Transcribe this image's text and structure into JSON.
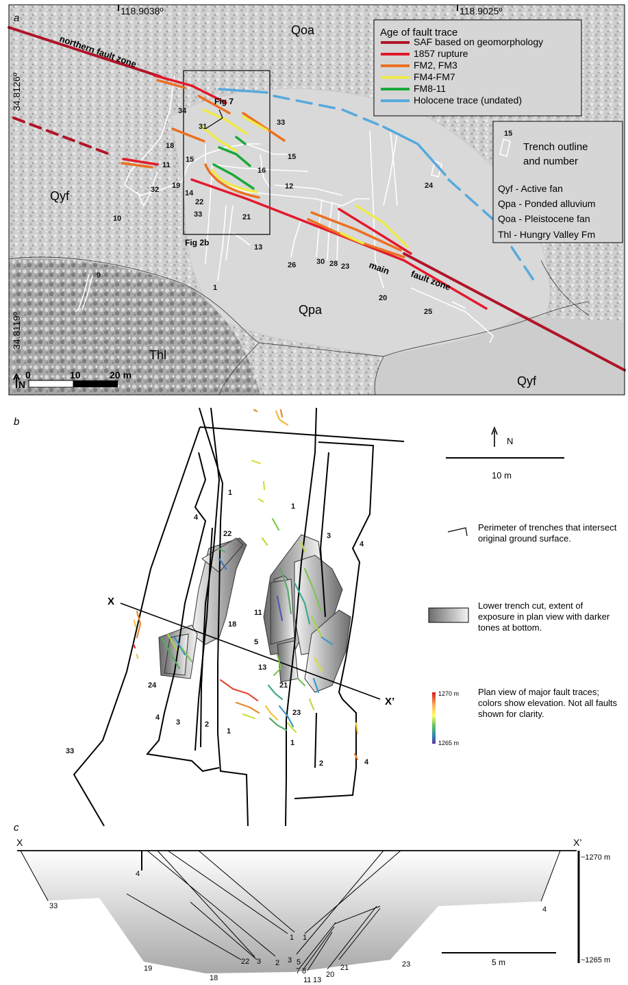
{
  "panel_a": {
    "panel_letter": "a",
    "coords": {
      "top_left": "118.9038º",
      "top_right": "118.9025º",
      "left_top": "34.8126º",
      "left_bottom": "34.8119º"
    },
    "units": {
      "qoa": "Qoa",
      "qyf_left": "Qyf",
      "qpa": "Qpa",
      "thl": "Thl",
      "qyf_right": "Qyf"
    },
    "zone_labels": {
      "northern": "northern fault zone",
      "main": "main",
      "fault_zone": "fault zone"
    },
    "figure_refs": {
      "fig7": "Fig 7",
      "fig2b": "Fig 2b"
    },
    "legend": {
      "title": "Age of fault trace",
      "items": [
        {
          "label": "SAF based on geomorphology",
          "color": "#b01428"
        },
        {
          "label": "1857 rupture",
          "color": "#e2192c"
        },
        {
          "label": "FM2, FM3",
          "color": "#ec7020"
        },
        {
          "label": "FM4-FM7",
          "color": "#eeea4a"
        },
        {
          "label": "FM8-11",
          "color": "#1aa838"
        },
        {
          "label": "Holocene trace (undated)",
          "color": "#56a9dc"
        }
      ]
    },
    "key_box": {
      "trench_number": "15",
      "trench_line1": "Trench outline",
      "trench_line2": "and number",
      "units": [
        "Qyf - Active fan",
        "Qpa - Ponded alluvium",
        "Qoa - Pleistocene fan",
        "Thl - Hungry Valley Fm"
      ]
    },
    "trench_numbers": [
      "34",
      "31",
      "33",
      "18",
      "15",
      "15",
      "16",
      "11",
      "32",
      "19",
      "12",
      "14",
      "22",
      "33",
      "21",
      "10",
      "13",
      "24",
      "26",
      "30",
      "28",
      "23",
      "9",
      "1",
      "20",
      "25"
    ],
    "scale": {
      "north": "N",
      "zero": "0",
      "ten": "10",
      "twenty": "20 m"
    }
  },
  "panel_b": {
    "panel_letter": "b",
    "north": "N",
    "scale_label": "10 m",
    "section_ends": {
      "left": "X",
      "right": "X’"
    },
    "labels": [
      "1",
      "1",
      "4",
      "22",
      "3",
      "4",
      "11",
      "5",
      "13",
      "21",
      "18",
      "23",
      "24",
      "4",
      "3",
      "2",
      "1",
      "1",
      "33",
      "2",
      "4"
    ],
    "legend": {
      "perimeter": "Perimeter of trenches that intersect original ground surface.",
      "lower_cut": "Lower trench cut, extent of exposure in plan view with darker tones at bottom.",
      "elev_top": "1270 m",
      "elev_bottom": "1265 m",
      "fault_traces": "Plan view of major fault traces; colors show elevation. Not all faults shown for clarity."
    }
  },
  "panel_c": {
    "panel_letter": "c",
    "ends": {
      "left": "X",
      "right": "X’"
    },
    "elev_top": "~1270 m",
    "elev_bottom": "~1265 m",
    "scale_label": "5 m",
    "labels": [
      "4",
      "33",
      "1",
      "1",
      "22",
      "3",
      "2",
      "3",
      "5",
      "7",
      "8",
      "11",
      "13",
      "20",
      "21",
      "19",
      "18",
      "23",
      "4"
    ]
  }
}
